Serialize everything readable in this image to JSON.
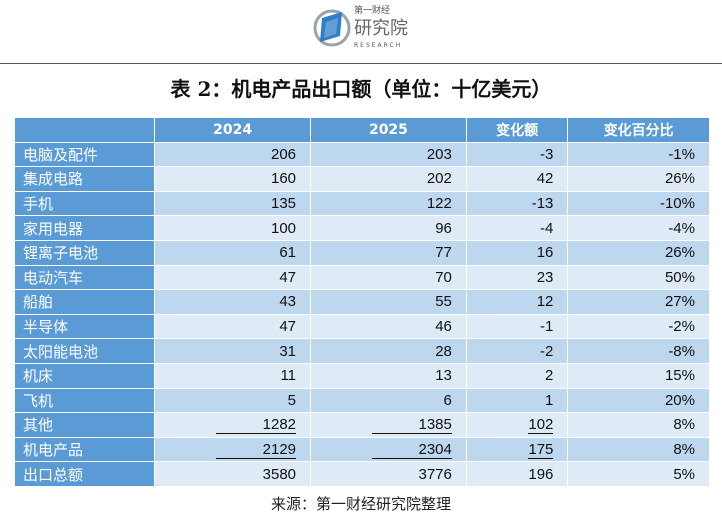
{
  "logo": {
    "line1": "第一财经",
    "line2": "研究院",
    "line3": "RESEARCH"
  },
  "title": "表 2：机电产品出口额（单位：十亿美元）",
  "table": {
    "headers": [
      "",
      "2024",
      "2025",
      "变化额",
      "变化百分比"
    ],
    "rows": [
      {
        "label": "电脑及配件",
        "y2024": "206",
        "y2025": "203",
        "change": "-3",
        "pct": "-1%"
      },
      {
        "label": "集成电路",
        "y2024": "160",
        "y2025": "202",
        "change": "42",
        "pct": "26%"
      },
      {
        "label": "手机",
        "y2024": "135",
        "y2025": "122",
        "change": "-13",
        "pct": "-10%"
      },
      {
        "label": "家用电器",
        "y2024": "100",
        "y2025": "96",
        "change": "-4",
        "pct": "-4%"
      },
      {
        "label": "锂离子电池",
        "y2024": "61",
        "y2025": "77",
        "change": "16",
        "pct": "26%"
      },
      {
        "label": "电动汽车",
        "y2024": "47",
        "y2025": "70",
        "change": "23",
        "pct": "50%"
      },
      {
        "label": "船舶",
        "y2024": "43",
        "y2025": "55",
        "change": "12",
        "pct": "27%"
      },
      {
        "label": "半导体",
        "y2024": "47",
        "y2025": "46",
        "change": "-1",
        "pct": "-2%"
      },
      {
        "label": "太阳能电池",
        "y2024": "31",
        "y2025": "28",
        "change": "-2",
        "pct": "-8%"
      },
      {
        "label": "机床",
        "y2024": "11",
        "y2025": "13",
        "change": "2",
        "pct": "15%"
      },
      {
        "label": "飞机",
        "y2024": "5",
        "y2025": "6",
        "change": "1",
        "pct": "20%"
      },
      {
        "label": "其他",
        "y2024": "1282",
        "y2025": "1385",
        "change": "102",
        "pct": "8%",
        "underline": true
      },
      {
        "label": "机电产品",
        "y2024": "2129",
        "y2025": "2304",
        "change": "175",
        "pct": "8%",
        "underline": true
      },
      {
        "label": "出口总额",
        "y2024": "3580",
        "y2025": "3776",
        "change": "196",
        "pct": "5%"
      }
    ]
  },
  "source": "来源：第一财经研究院整理"
}
